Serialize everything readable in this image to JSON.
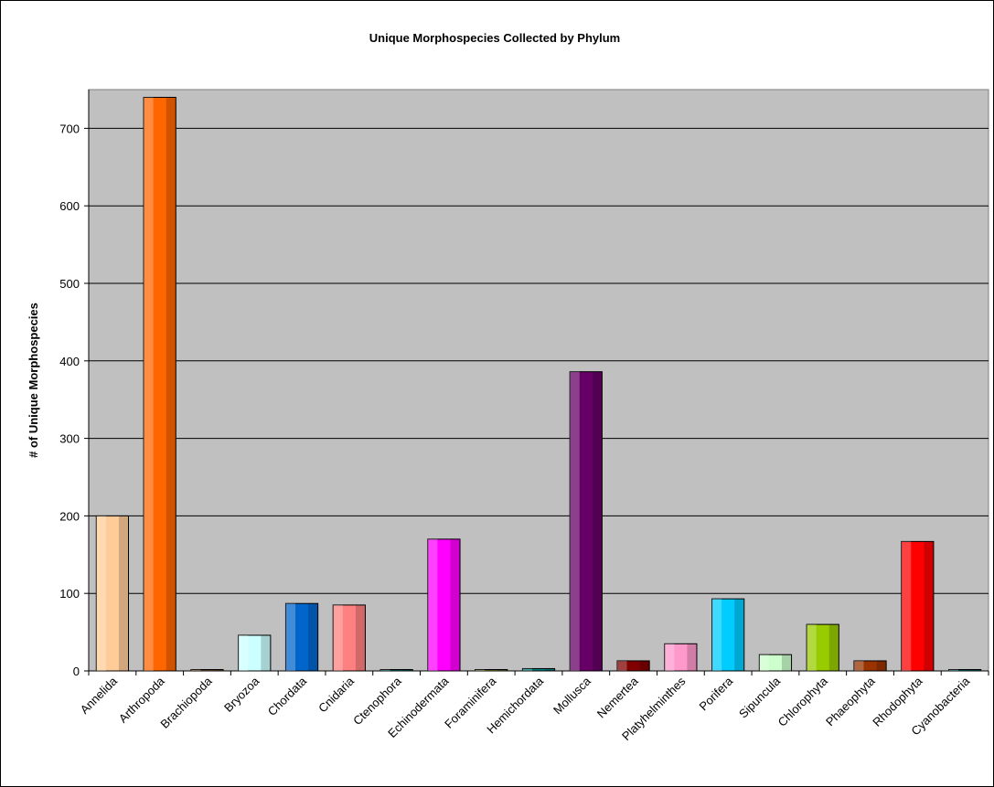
{
  "chart_data": {
    "type": "bar",
    "title": "Unique Morphospecies Collected by Phylum",
    "xlabel": "",
    "ylabel": "# of Unique Morphospecies",
    "ylim": [
      0,
      750
    ],
    "yticks": [
      0,
      100,
      200,
      300,
      400,
      500,
      600,
      700
    ],
    "grid": true,
    "legend": "none",
    "plot_background": "#c0c0c0",
    "categories": [
      "Annelida",
      "Arthropoda",
      "Brachiopoda",
      "Bryozoa",
      "Chordata",
      "Cnidaria",
      "Ctenophora",
      "Echinodermata",
      "Foraminifera",
      "Hemichordata",
      "Mollusca",
      "Nemertea",
      "Platyhelminthes",
      "Porifera",
      "Sipuncula",
      "Chlorophyta",
      "Phaeophyta",
      "Rhodophyta",
      "Cyanobacteria"
    ],
    "values": [
      200,
      740,
      1,
      46,
      87,
      85,
      1,
      170,
      1,
      3,
      386,
      13,
      35,
      93,
      21,
      60,
      13,
      167,
      1
    ],
    "colors": [
      "#ffcc99",
      "#ff6600",
      "#996633",
      "#ccffff",
      "#0066cc",
      "#ff8080",
      "#008080",
      "#ff00ff",
      "#999933",
      "#008080",
      "#660066",
      "#800000",
      "#ff99cc",
      "#00ccff",
      "#ccffcc",
      "#99cc00",
      "#993300",
      "#ff0000",
      "#008080"
    ]
  }
}
